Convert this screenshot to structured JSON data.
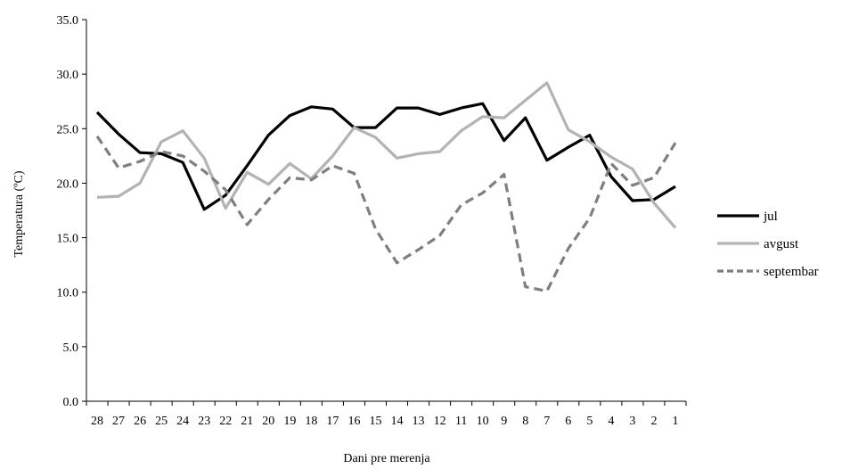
{
  "chart_data": {
    "type": "line",
    "xlabel": "Dani pre merenja",
    "ylabel": "Temperatura (ºC)",
    "ylim": [
      0,
      35
    ],
    "yticks": [
      "0.0",
      "5.0",
      "10.0",
      "15.0",
      "20.0",
      "25.0",
      "30.0",
      "35.0"
    ],
    "grid": false,
    "legend_position": "right",
    "categories": [
      "28",
      "27",
      "26",
      "25",
      "24",
      "23",
      "22",
      "21",
      "20",
      "19",
      "18",
      "17",
      "16",
      "15",
      "14",
      "13",
      "12",
      "11",
      "10",
      "9",
      "8",
      "7",
      "6",
      "5",
      "4",
      "3",
      "2",
      "1"
    ],
    "series": [
      {
        "name": "jul",
        "color": "#000000",
        "dash": "solid",
        "values": [
          26.5,
          24.5,
          22.8,
          22.7,
          21.9,
          17.6,
          18.9,
          21.6,
          24.4,
          26.2,
          27.0,
          26.8,
          25.1,
          25.1,
          26.9,
          26.9,
          26.3,
          26.9,
          27.3,
          23.9,
          26.0,
          22.1,
          23.3,
          24.4,
          20.6,
          18.4,
          18.5,
          19.7
        ]
      },
      {
        "name": "avgust",
        "color": "#b3b3b3",
        "dash": "solid",
        "values": [
          18.7,
          18.8,
          20.0,
          23.8,
          24.8,
          22.3,
          17.7,
          21.0,
          19.9,
          21.8,
          20.4,
          22.5,
          25.1,
          24.2,
          22.3,
          22.7,
          22.9,
          24.8,
          26.1,
          26.0,
          27.6,
          29.2,
          24.9,
          23.8,
          22.4,
          21.3,
          18.2,
          15.9
        ]
      },
      {
        "name": "septembar",
        "color": "#7f7f7f",
        "dash": "dashed",
        "values": [
          24.3,
          21.4,
          22.0,
          22.9,
          22.5,
          21.1,
          19.4,
          16.2,
          18.5,
          20.5,
          20.3,
          21.6,
          20.9,
          15.8,
          12.7,
          13.9,
          15.2,
          18.0,
          19.1,
          20.8,
          10.5,
          10.1,
          14.0,
          16.8,
          21.8,
          19.8,
          20.5,
          23.7
        ]
      }
    ]
  }
}
